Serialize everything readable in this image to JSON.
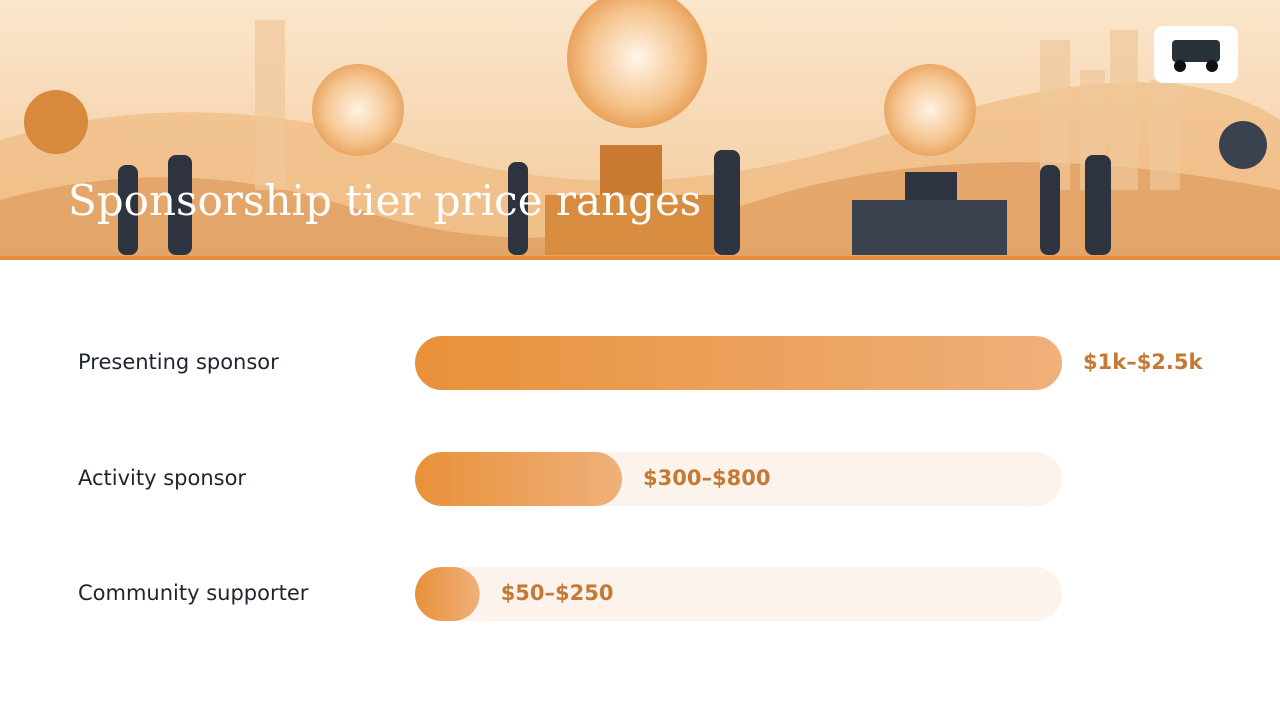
{
  "chart_data": {
    "type": "bar",
    "orientation": "horizontal",
    "title": "Sponsorship tier price ranges",
    "categories": [
      "Presenting sponsor",
      "Activity sponsor",
      "Community supporter"
    ],
    "values": [
      2500,
      800,
      250
    ],
    "value_labels": [
      "$1k–$2.5k",
      "$300–$800",
      "$50–$250"
    ],
    "xlim": [
      0,
      2500
    ],
    "color": "#e8913a",
    "track_color": "#fbf3ec"
  }
}
